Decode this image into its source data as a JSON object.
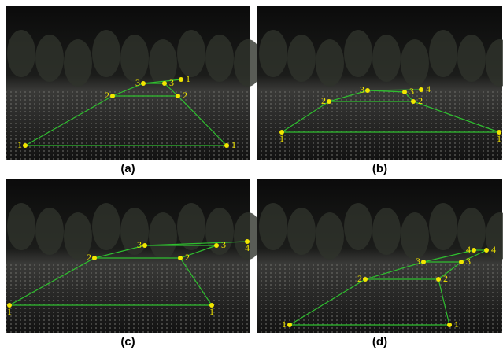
{
  "panels": [
    {
      "caption": "(a)",
      "points": [
        "1",
        "1",
        "2",
        "2",
        "3",
        "3",
        "1"
      ]
    },
    {
      "caption": "(b)",
      "points": [
        "1",
        "1",
        "2",
        "2",
        "3",
        "3",
        "4"
      ]
    },
    {
      "caption": "(c)",
      "points": [
        "1",
        "1",
        "2",
        "2",
        "3",
        "3",
        "4"
      ]
    },
    {
      "caption": "(d)",
      "points": [
        "1",
        "1",
        "2",
        "2",
        "3",
        "3",
        "4",
        "4"
      ]
    }
  ]
}
